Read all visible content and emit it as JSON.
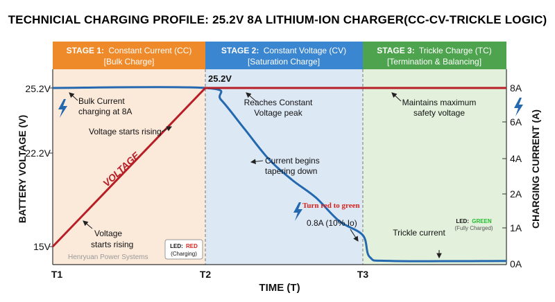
{
  "title": "TECHNICIAL CHARGING PROFILE: 25.2V 8A LITHIUM-ION CHARGER(CC-CV-TRICKLE LOGIC)",
  "colors": {
    "voltage": "#b81e25",
    "current": "#2468b0",
    "stage1_header": "#ef8a2a",
    "stage2_header": "#3b86d0",
    "stage3_header": "#4ea44e",
    "stage1_bg": "#fbe9da",
    "stage2_bg": "#dde8f5",
    "stage3_bg": "#e2f0dc",
    "led_red": "#d9221c",
    "led_green": "#1fbf2a"
  },
  "stages": [
    {
      "label": "STAGE 1:",
      "name": "Constant Current (CC)",
      "sub": "[Bulk Charge]"
    },
    {
      "label": "STAGE 2:",
      "name": "Constant Voltage (CV)",
      "sub": "[Saturation Charge]"
    },
    {
      "label": "STAGE 3:",
      "name": "Trickle Charge (TC)",
      "sub": "[Termination & Balancing]"
    }
  ],
  "annotations": {
    "bulk_line1": "Bulk Current",
    "bulk_line2": "charging at 8A",
    "voltage_rising_upper": "Voltage starts rising",
    "voltage_rising_lower_1": "Voltage",
    "voltage_rising_lower_2": "starts rising",
    "voltage_line_label": "VOLTAGE",
    "peak_value": "25.2V",
    "peak_line1": "Reaches Constant",
    "peak_line2": "Voltage peak",
    "current_tapering_1": "Current begins",
    "current_tapering_2": "tapering down",
    "turn_red_green": "Turn red to green",
    "point_08a": "0.8A (10% Io)",
    "maintains_1": "Maintains maximum",
    "maintains_2": "safety voltage",
    "trickle": "Trickle current",
    "led_red_prefix": "LED:",
    "led_red_color": "RED",
    "led_red_state": "(Charging)",
    "led_green_prefix": "LED:",
    "led_green_color": "GREEN",
    "led_green_state": "(Fully Charged)",
    "watermark": "Henryuan Power Systems"
  },
  "chart_data": {
    "type": "line",
    "xlabel": "TIME (T)",
    "ylabel_left": "BATTERY VOLTAGE (V)",
    "ylabel_right": "CHARGING CURRENT (A)",
    "x_ticks": [
      "T1",
      "T2",
      "T3"
    ],
    "y_left_ticks": [
      "25.2V",
      "22.2V",
      "15V"
    ],
    "y_right_ticks": [
      "8A",
      "6A",
      "4A",
      "2A",
      "1A",
      "0A"
    ],
    "series": [
      {
        "name": "VOLTAGE",
        "axis": "left",
        "points": [
          [
            0,
            15.0
          ],
          [
            1,
            25.2
          ],
          [
            2,
            25.2
          ],
          [
            3,
            25.2
          ]
        ]
      },
      {
        "axis": "right",
        "points": [
          [
            0,
            8.0
          ],
          [
            1,
            8.0
          ],
          [
            1.1,
            7.3
          ],
          [
            1.25,
            5.6
          ],
          [
            1.4,
            4.0
          ],
          [
            1.55,
            2.8
          ],
          [
            1.7,
            1.9
          ],
          [
            1.85,
            1.2
          ],
          [
            2,
            0.8
          ],
          [
            2.05,
            0.2
          ],
          [
            2.2,
            0.1
          ],
          [
            3,
            0.1
          ]
        ]
      }
    ],
    "grid": false
  }
}
